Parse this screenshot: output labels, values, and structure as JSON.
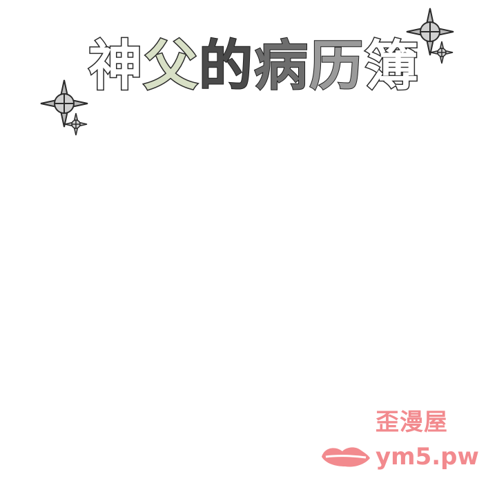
{
  "title": {
    "chars": [
      "神",
      "父",
      "的",
      "病",
      "历",
      "簿"
    ]
  },
  "decorations": {
    "icon": "sparkle-star-icon",
    "stroke_color": "#2a2a2a",
    "fill_color": "#b8b8b8"
  },
  "watermark": {
    "site_name": "歪漫屋",
    "url": "ym5.pw",
    "logo_icon": "lips-logo-icon",
    "color": "#f28a8e"
  }
}
